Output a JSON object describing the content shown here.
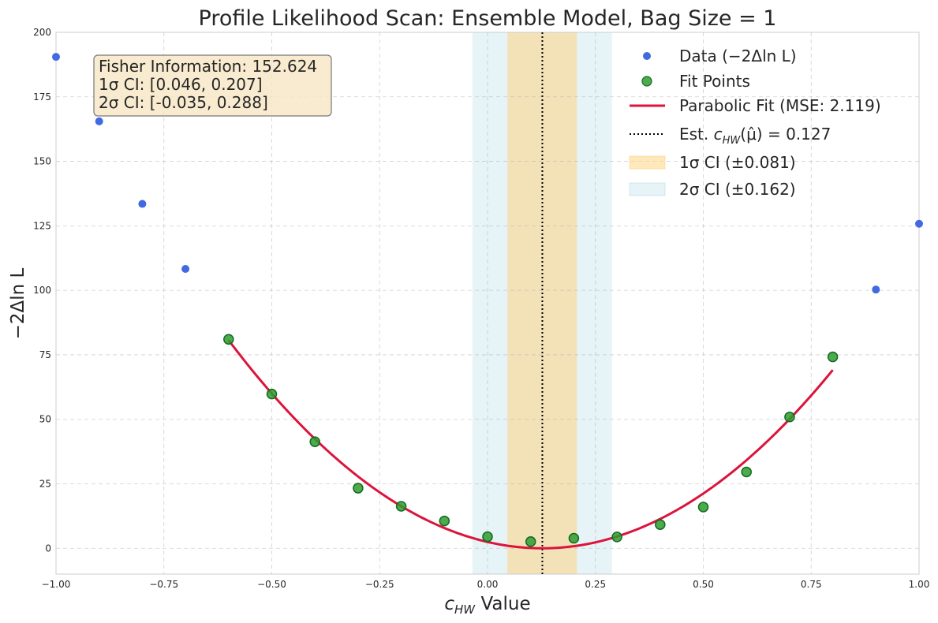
{
  "chart_data": {
    "type": "scatter",
    "title": "Profile Likelihood Scan: Ensemble Model, Bag Size = 1",
    "xlabel_var": "c",
    "xlabel_sub": "HW",
    "xlabel_rest": " Value",
    "ylabel": "−2Δln L",
    "xlim": [
      -1.0,
      1.0
    ],
    "ylim": [
      -10,
      200
    ],
    "x_ticks": [
      "−1.00",
      "−0.75",
      "−0.50",
      "−0.25",
      "0.00",
      "0.25",
      "0.50",
      "0.75",
      "1.00"
    ],
    "y_ticks": [
      "0",
      "25",
      "50",
      "75",
      "100",
      "125",
      "150",
      "175",
      "200"
    ],
    "grid": true,
    "legend_position": "top-right",
    "series": [
      {
        "name": "Data (−2Δln L)",
        "color": "#4169e1",
        "x": [
          -1.0,
          -0.9,
          -0.8,
          -0.7,
          0.9,
          1.0
        ],
        "y": [
          190.5,
          165.5,
          133.5,
          108.3,
          100.3,
          125.8
        ]
      },
      {
        "name": "Fit Points",
        "color": "#2e9b2e",
        "edge_color": "#116b22",
        "x": [
          -0.6,
          -0.5,
          -0.4,
          -0.3,
          -0.2,
          -0.1,
          0.0,
          0.1,
          0.2,
          0.3,
          0.4,
          0.5,
          0.6,
          0.7,
          0.8
        ],
        "y": [
          81.0,
          59.8,
          41.3,
          23.3,
          16.3,
          10.6,
          4.5,
          2.6,
          3.9,
          4.4,
          9.2,
          16.0,
          29.6,
          50.9,
          74.2
        ]
      }
    ],
    "fit": {
      "name": "Parabolic Fit (MSE: 2.119)",
      "color": "#dc143c",
      "mu": 0.127,
      "coefficient": 152.624,
      "x_range": [
        -0.6,
        0.8
      ]
    },
    "estimate": {
      "label_prefix": "Est. ",
      "label_var": "c",
      "label_sub": "HW",
      "label_arg": "(μ̂) = 0.127",
      "x": 0.127
    },
    "bands": [
      {
        "name": "1σ CI (±0.081)",
        "range": [
          0.046,
          0.207
        ],
        "color": "#ffd27a",
        "opacity": 0.5
      },
      {
        "name": "2σ CI (±0.162)",
        "range": [
          -0.035,
          0.288
        ],
        "color": "#add8e6",
        "opacity": 0.3
      }
    ],
    "info_box": {
      "lines": [
        "Fisher Information: 152.624",
        "1σ CI: [0.046, 0.207]",
        "2σ CI: [-0.035, 0.288]"
      ],
      "background": "#f7e6c4"
    }
  }
}
